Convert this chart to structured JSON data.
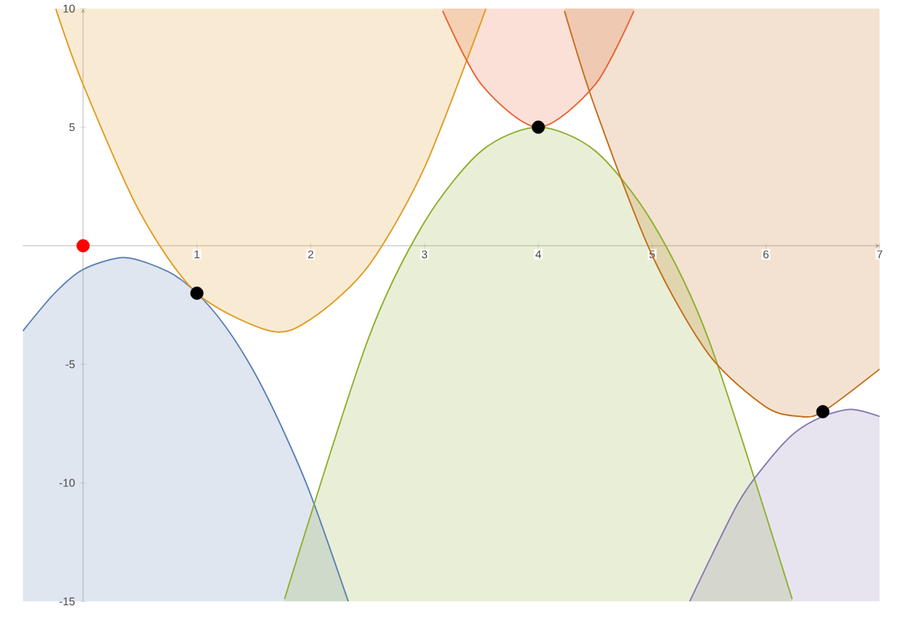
{
  "chart_data": {
    "type": "area",
    "xlim": [
      -0.53,
      7
    ],
    "ylim": [
      -15,
      10
    ],
    "xticks": [
      1,
      2,
      3,
      4,
      5,
      6,
      7
    ],
    "yticks": [
      -15,
      -10,
      -5,
      5,
      10
    ],
    "grid": false,
    "series": [
      {
        "type": "area",
        "color": "#5e81b5",
        "x": [
          -0.53,
          -0.25,
          0,
          0.37,
          0.75,
          1,
          1.25,
          1.5,
          1.75,
          2,
          2.33
        ],
        "values": [
          -3.6,
          -2.0,
          -1.0,
          -0.5,
          -1.1,
          -2.0,
          -3.4,
          -5.3,
          -7.7,
          -10.5,
          -15.0
        ]
      },
      {
        "type": "area",
        "color": "#e19c24",
        "x": [
          -0.24,
          0,
          0.5,
          1,
          1.65,
          2,
          2.5,
          3,
          3.54
        ],
        "values": [
          10.0,
          6.8,
          1.4,
          -2.0,
          -3.6,
          -3.1,
          -0.9,
          3.3,
          10.0
        ]
      },
      {
        "type": "area",
        "color": "#eb6235",
        "x": [
          3.16,
          3.5,
          4,
          4.5,
          4.84
        ],
        "values": [
          9.9,
          6.8,
          5.0,
          6.8,
          9.9
        ]
      },
      {
        "type": "area",
        "color": "#8fb032",
        "x": [
          1.77,
          2.5,
          3,
          3.5,
          4,
          4.5,
          5,
          5.5,
          6.23
        ],
        "values": [
          -14.9,
          -4.0,
          1.0,
          4.0,
          5.0,
          4.0,
          1.0,
          -4.0,
          -14.9
        ]
      },
      {
        "type": "area",
        "color": "#c56e1a",
        "x": [
          4.23,
          4.5,
          5,
          5.5,
          6,
          6.3,
          6.5,
          7
        ],
        "values": [
          9.9,
          5.8,
          -0.4,
          -4.6,
          -6.8,
          -7.2,
          -7.0,
          -5.2
        ]
      },
      {
        "type": "area",
        "color": "#8778b3",
        "x": [
          5.33,
          5.75,
          6,
          6.25,
          6.5,
          6.75,
          7
        ],
        "values": [
          -15.0,
          -10.9,
          -9.2,
          -7.9,
          -7.2,
          -6.9,
          -7.2
        ]
      },
      {
        "type": "scatter",
        "marker": "circle",
        "color": "#000000",
        "x": [
          1,
          4,
          6.5
        ],
        "values": [
          -2,
          5,
          -7
        ]
      },
      {
        "type": "scatter",
        "marker": "circle",
        "color": "#ff0000",
        "x": [
          0
        ],
        "values": [
          0
        ]
      }
    ]
  }
}
